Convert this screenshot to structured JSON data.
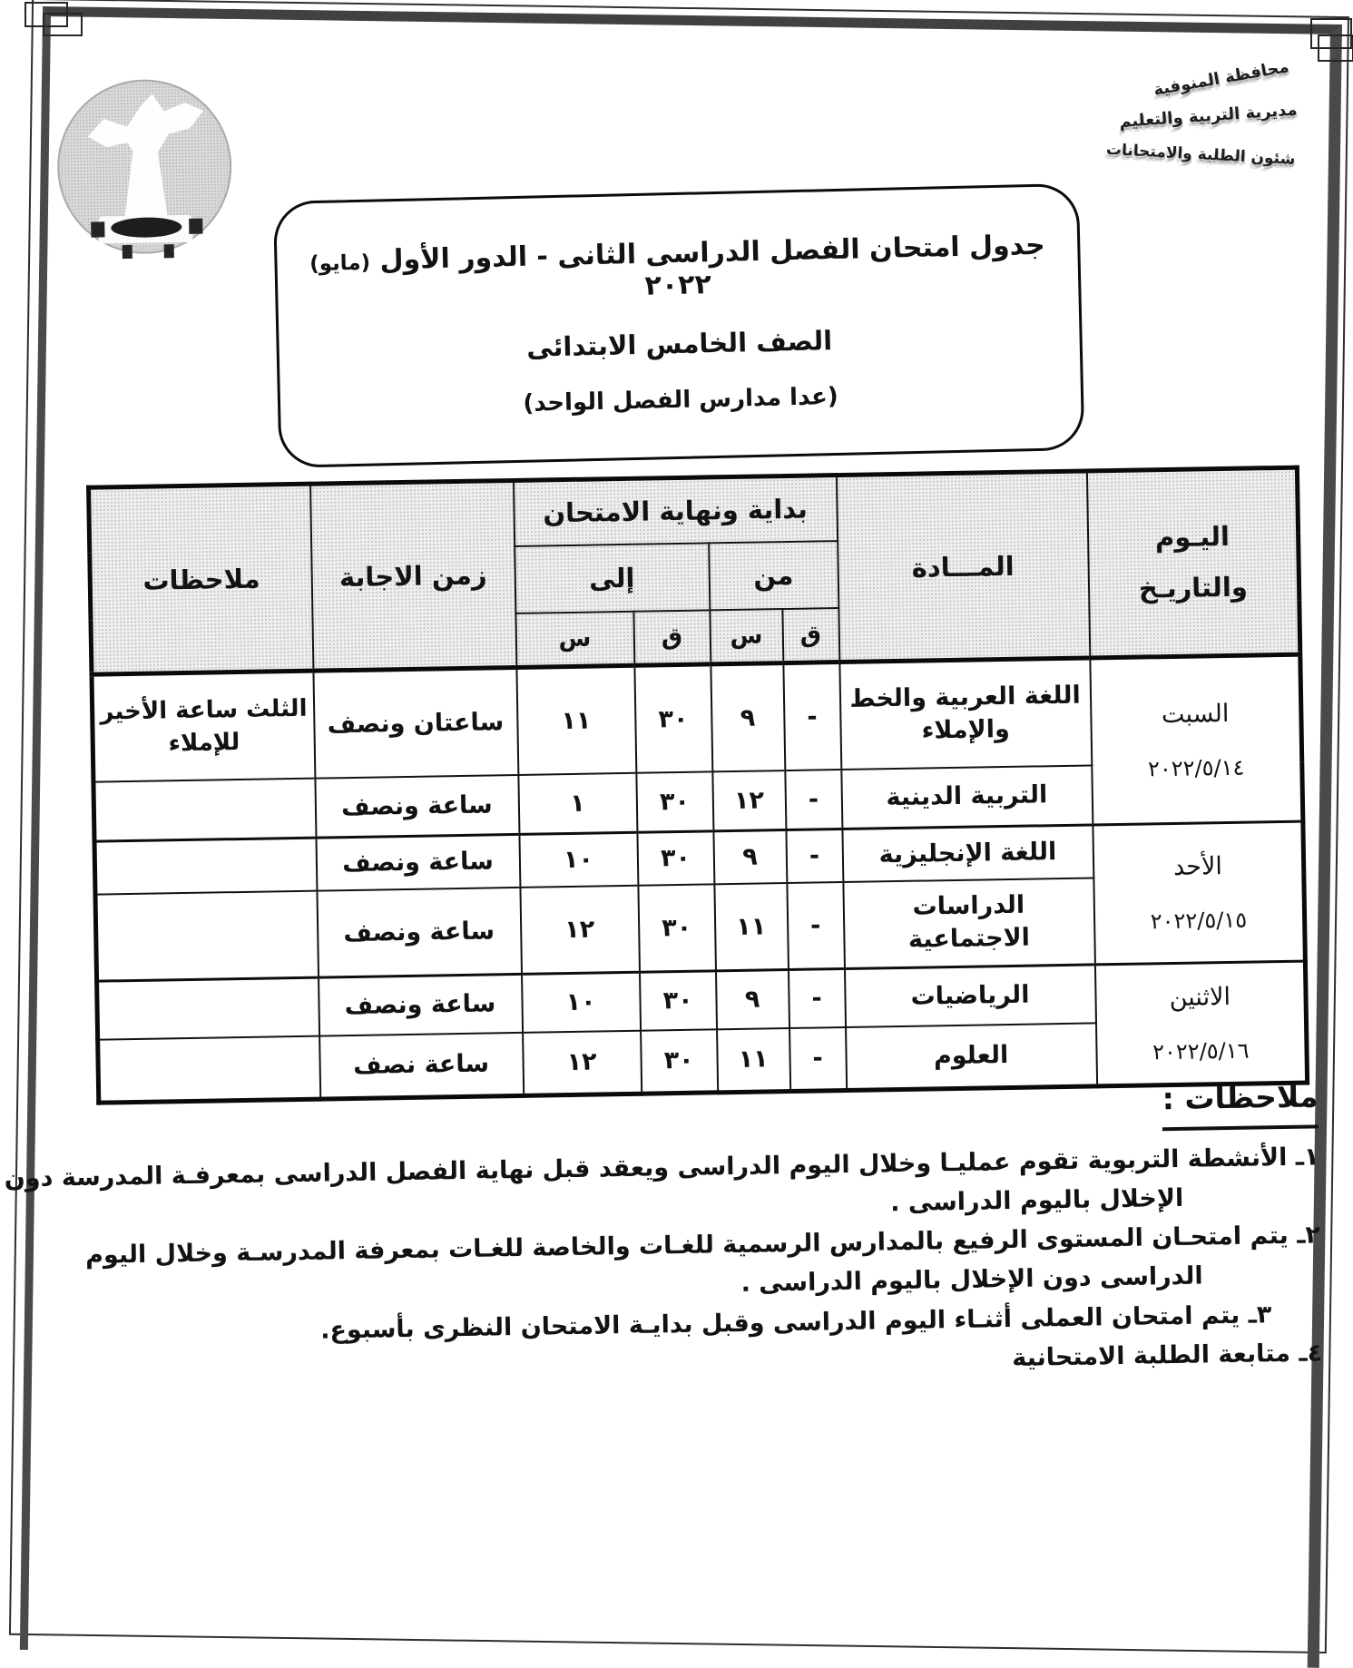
{
  "stamp": {
    "line1": "محافظة المنوفية",
    "line2": "مديرية التربية والتعليم",
    "line3": "شئون الطلبة والامتحانات"
  },
  "title": {
    "line1_main": "جدول امتحان الفصل الدراسى الثانى - الدور الأول",
    "line1_month": "(مايو)",
    "line1_year": "٢٠٢٢",
    "line2": "الصف الخامس الابتدائى",
    "line3": "(عدا مدارس الفصل الواحد)"
  },
  "table": {
    "header": {
      "day_line1": "اليـوم",
      "day_line2": "والتاريـخ",
      "subject": "المـــادة",
      "exam_span": "بداية ونهاية الامتحان",
      "from": "من",
      "to": "إلى",
      "hours_abbrev": "س",
      "minutes_abbrev": "ق",
      "duration": "زمن الاجابة",
      "notes": "ملاحظات"
    },
    "groups": [
      {
        "day": "السبت",
        "date": "٢٠٢٢/٥/١٤",
        "rows": [
          {
            "subject": "اللغة العربية والخط والإملاء",
            "from_m": "-",
            "from_h": "٩",
            "to_m": "٣٠",
            "to_h": "١١",
            "duration": "ساعتان ونصف",
            "note": "الثلث ساعة الأخير للإملاء"
          },
          {
            "subject": "التربية الدينية",
            "from_m": "-",
            "from_h": "١٢",
            "to_m": "٣٠",
            "to_h": "١",
            "duration": "ساعة ونصف",
            "note": ""
          }
        ]
      },
      {
        "day": "الأحد",
        "date": "٢٠٢٢/٥/١٥",
        "rows": [
          {
            "subject": "اللغة الإنجليزية",
            "from_m": "-",
            "from_h": "٩",
            "to_m": "٣٠",
            "to_h": "١٠",
            "duration": "ساعة ونصف",
            "note": ""
          },
          {
            "subject": "الدراسات الاجتماعية",
            "from_m": "-",
            "from_h": "١١",
            "to_m": "٣٠",
            "to_h": "١٢",
            "duration": "ساعة ونصف",
            "note": ""
          }
        ]
      },
      {
        "day": "الاثنين",
        "date": "٢٠٢٢/٥/١٦",
        "rows": [
          {
            "subject": "الرياضيات",
            "from_m": "-",
            "from_h": "٩",
            "to_m": "٣٠",
            "to_h": "١٠",
            "duration": "ساعة ونصف",
            "note": ""
          },
          {
            "subject": "العلوم",
            "from_m": "-",
            "from_h": "١١",
            "to_m": "٣٠",
            "to_h": "١٢",
            "duration": "ساعة نصف",
            "note": ""
          }
        ]
      }
    ]
  },
  "notes_section": {
    "heading": "ملاحظات :",
    "items": [
      {
        "lines": [
          "١ـ الأنشطة التربوية تقوم عمليـا وخلال اليوم الدراسى ويعقد قبل نهاية الفصل الدراسى بمعرفـة المدرسة دون",
          "الإخلال باليوم الدراسى ."
        ]
      },
      {
        "lines": [
          "٢ـ يتم امتحـان المستوى الرفيع بالمدارس الرسمية للغـات والخاصة للغـات بمعرفة المدرسـة وخلال اليوم",
          "الدراسى دون الإخلال باليوم الدراسى ."
        ]
      },
      {
        "lines": [
          "٣ـ يتم امتحان العملى أثنـاء اليوم الدراسى وقبل بدايـة الامتحان النظرى بأسبوع."
        ]
      },
      {
        "lines": [
          "٤ـ متابعة الطلبة الامتحانية"
        ],
        "clipped": true
      }
    ]
  }
}
